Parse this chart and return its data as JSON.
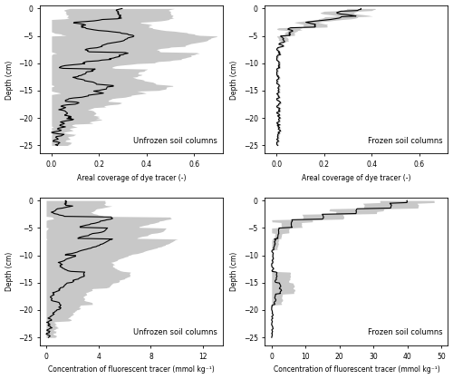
{
  "fill_color": "#c8c8c8",
  "line_color": "#000000",
  "bg_color": "#ffffff",
  "unf_label": "Unfrozen soil columns",
  "frz_label": "Frozen soil columns",
  "ylabel": "Depth (cm)",
  "xlabel_dye": "Areal coverage of dye tracer (-)",
  "xlabel_conc": "Concentration of fluorescent tracer (mmol kg⁻¹)",
  "ylim": [
    -26.5,
    0.5
  ],
  "yticks": [
    0,
    -5,
    -10,
    -15,
    -20,
    -25
  ],
  "xlim_dye": [
    -0.05,
    0.72
  ],
  "xticks_dye": [
    0.0,
    0.2,
    0.4,
    0.6
  ],
  "xlim_unf_conc": [
    -0.5,
    13.5
  ],
  "xticks_unf_conc": [
    0,
    4,
    8,
    12
  ],
  "xlim_frz_conc": [
    -2.0,
    52.0
  ],
  "xticks_frz_conc": [
    0,
    10,
    20,
    30,
    40,
    50
  ]
}
